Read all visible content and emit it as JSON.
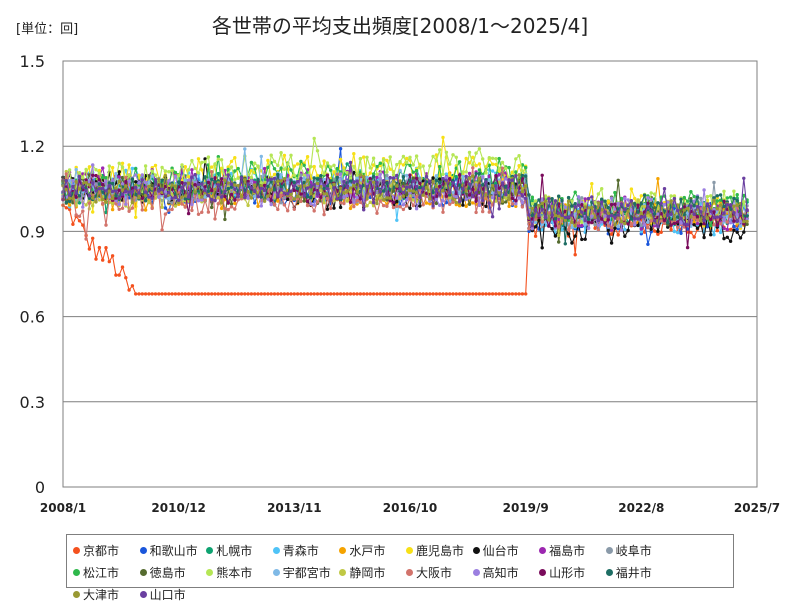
{
  "unit_label": "[単位：回]",
  "chart_data": {
    "type": "line",
    "title": "各世帯の平均支出頻度[2008/1～2025/4]",
    "xlabel": "",
    "ylabel": "",
    "ylim": [
      0,
      1.5
    ],
    "yticks": [
      0,
      0.3,
      0.6,
      0.9,
      1.2,
      1.5
    ],
    "ytick_labels": [
      "0",
      "0.3",
      "0.6",
      "0.9",
      "1.2",
      "1.5"
    ],
    "xticks": [
      "2008/1",
      "2010/12",
      "2013/11",
      "2016/10",
      "2019/9",
      "2022/8",
      "2025/7"
    ],
    "x_range": [
      "2008/1",
      "2025/7"
    ],
    "grid": true,
    "legend_position": "bottom",
    "series": [
      {
        "name": "京都市",
        "color": "#f4511e",
        "base": 0.98,
        "phase1": 0.03,
        "phase2": 0.93,
        "amp": 0.04
      },
      {
        "name": "和歌山市",
        "color": "#1a56db",
        "base": 1.04,
        "phase1": 1.04,
        "phase2": 0.95,
        "amp": 0.05
      },
      {
        "name": "札幌市",
        "color": "#0ea371",
        "base": 1.05,
        "phase1": 1.06,
        "phase2": 0.97,
        "amp": 0.04
      },
      {
        "name": "青森市",
        "color": "#4fc3f7",
        "base": 1.06,
        "phase1": 1.07,
        "phase2": 0.95,
        "amp": 0.05
      },
      {
        "name": "水戸市",
        "color": "#f5a300",
        "base": 1.02,
        "phase1": 1.03,
        "phase2": 0.96,
        "amp": 0.04
      },
      {
        "name": "鹿児島市",
        "color": "#f7e017",
        "base": 1.07,
        "phase1": 1.12,
        "phase2": 0.97,
        "amp": 0.05
      },
      {
        "name": "仙台市",
        "color": "#111111",
        "base": 1.06,
        "phase1": 1.03,
        "phase2": 0.92,
        "amp": 0.05
      },
      {
        "name": "福島市",
        "color": "#9c27b0",
        "base": 1.07,
        "phase1": 1.06,
        "phase2": 0.96,
        "amp": 0.05
      },
      {
        "name": "岐阜市",
        "color": "#8a9aa9",
        "base": 1.03,
        "phase1": 1.05,
        "phase2": 0.97,
        "amp": 0.04
      },
      {
        "name": "松江市",
        "color": "#2eb84b",
        "base": 1.06,
        "phase1": 1.09,
        "phase2": 0.98,
        "amp": 0.05
      },
      {
        "name": "徳島市",
        "color": "#556b2f",
        "base": 1.05,
        "phase1": 1.04,
        "phase2": 0.97,
        "amp": 0.04
      },
      {
        "name": "熊本市",
        "color": "#b5e655",
        "base": 1.08,
        "phase1": 1.13,
        "phase2": 0.99,
        "amp": 0.05
      },
      {
        "name": "宇都宮市",
        "color": "#7fb9e6",
        "base": 1.05,
        "phase1": 1.06,
        "phase2": 0.96,
        "amp": 0.04
      },
      {
        "name": "静岡市",
        "color": "#c0c844",
        "base": 1.02,
        "phase1": 1.04,
        "phase2": 0.97,
        "amp": 0.04
      },
      {
        "name": "大阪市",
        "color": "#d2736b",
        "base": 1.0,
        "phase1": 1.01,
        "phase2": 0.95,
        "amp": 0.04
      },
      {
        "name": "高知市",
        "color": "#9b7fe0",
        "base": 1.04,
        "phase1": 1.05,
        "phase2": 0.97,
        "amp": 0.05
      },
      {
        "name": "山形市",
        "color": "#7a0b5c",
        "base": 1.05,
        "phase1": 1.05,
        "phase2": 0.96,
        "amp": 0.04
      },
      {
        "name": "福井市",
        "color": "#1e6e64",
        "base": 1.04,
        "phase1": 1.06,
        "phase2": 0.98,
        "amp": 0.04
      },
      {
        "name": "大津市",
        "color": "#999933",
        "base": 1.04,
        "phase1": 1.05,
        "phase2": 0.97,
        "amp": 0.04
      },
      {
        "name": "山口市",
        "color": "#6a3fa0",
        "base": 1.05,
        "phase1": 1.05,
        "phase2": 0.97,
        "amp": 0.04
      }
    ]
  }
}
